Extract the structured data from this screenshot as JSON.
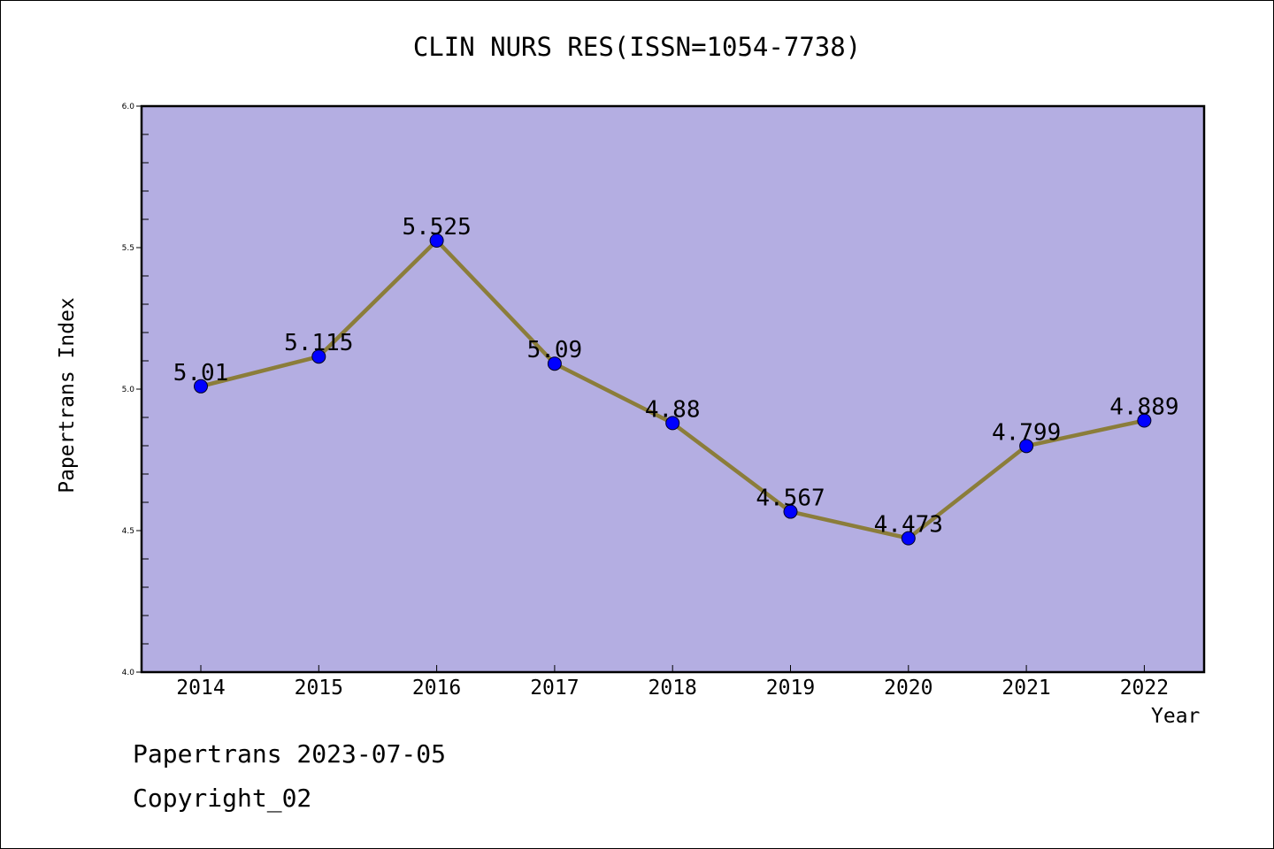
{
  "page": {
    "date_text": "Papertrans 2023-07-05",
    "copyright_text": "Copyright_02"
  },
  "chart_data": {
    "type": "line",
    "title": "CLIN NURS RES(ISSN=1054-7738)",
    "xlabel": "Year",
    "ylabel": "Papertrans Index",
    "categories": [
      "2014",
      "2015",
      "2016",
      "2017",
      "2018",
      "2019",
      "2020",
      "2021",
      "2022"
    ],
    "series": [
      {
        "values": [
          5.01,
          5.115,
          5.525,
          5.09,
          4.88,
          4.567,
          4.473,
          4.799,
          4.889
        ],
        "labels": [
          "5.01",
          "5.115",
          "5.525",
          "5.09",
          "4.88",
          "4.567",
          "4.473",
          "4.799",
          "4.889"
        ],
        "line_color": "#8b7d3a",
        "marker_color": "#0000ff"
      }
    ],
    "ylim": [
      4.0,
      6.0
    ],
    "yticks": [
      "4.0",
      "4.5",
      "5.0",
      "5.5",
      "6.0"
    ],
    "grid": false,
    "plot_background": "#b4aee2"
  }
}
